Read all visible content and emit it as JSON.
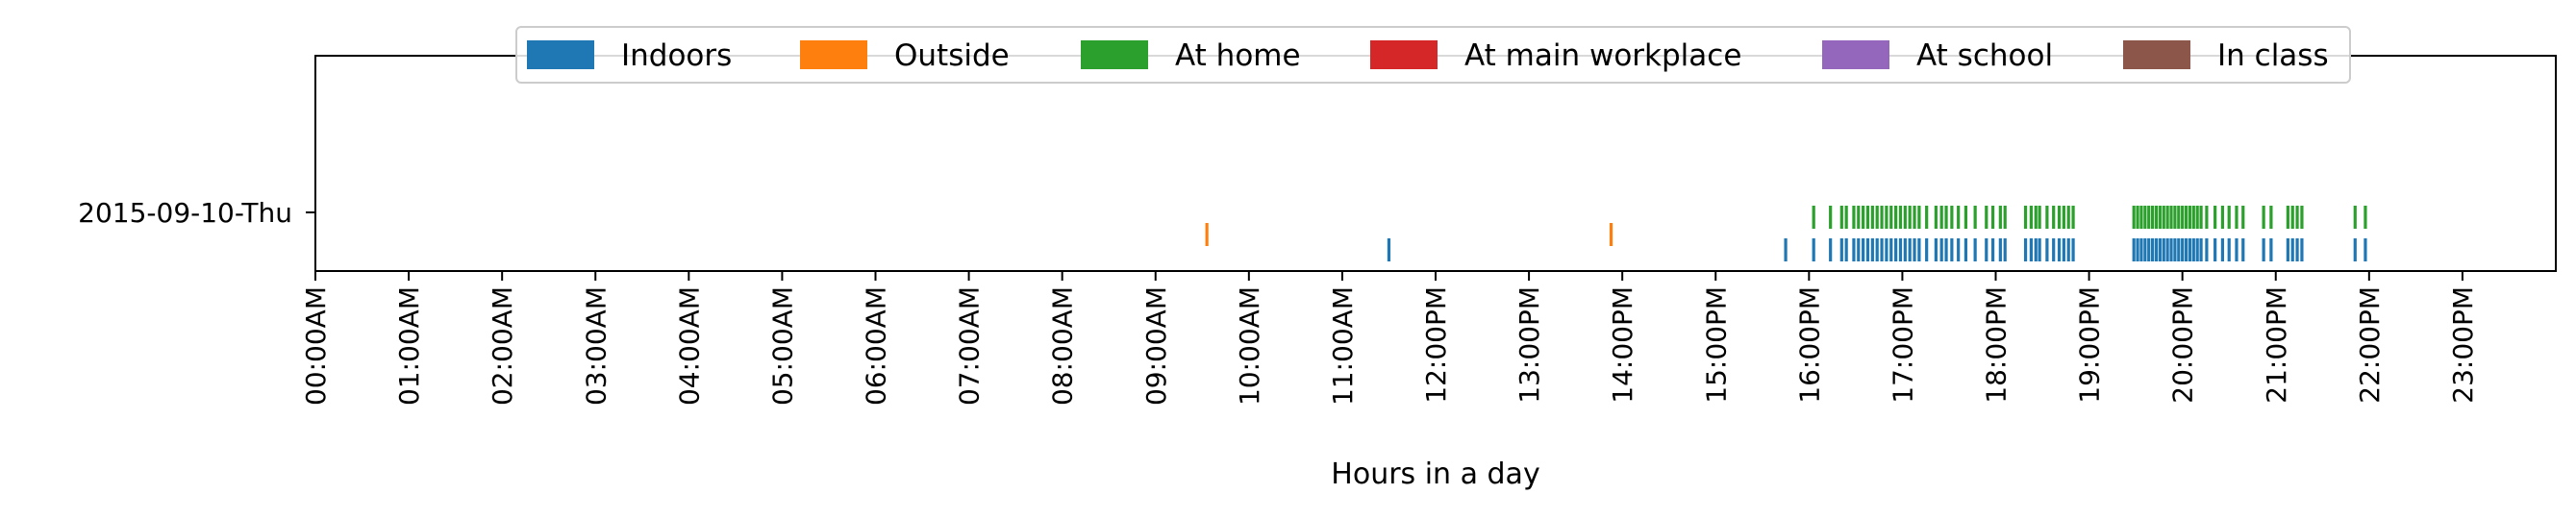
{
  "chart_data": {
    "type": "event-timeline",
    "xlabel": "Hours in a day",
    "ylabel": "",
    "xlim": [
      0,
      24
    ],
    "x_ticks": [
      0,
      1,
      2,
      3,
      4,
      5,
      6,
      7,
      8,
      9,
      10,
      11,
      12,
      13,
      14,
      15,
      16,
      17,
      18,
      19,
      20,
      21,
      22,
      23
    ],
    "x_tick_labels": [
      "00:00AM",
      "01:00AM",
      "02:00AM",
      "03:00AM",
      "04:00AM",
      "05:00AM",
      "06:00AM",
      "07:00AM",
      "08:00AM",
      "09:00AM",
      "10:00AM",
      "11:00AM",
      "12:00PM",
      "13:00PM",
      "14:00PM",
      "15:00PM",
      "16:00PM",
      "17:00PM",
      "18:00PM",
      "19:00PM",
      "20:00PM",
      "21:00PM",
      "22:00PM",
      "23:00PM"
    ],
    "y_categories": [
      "2015-09-10-Thu"
    ],
    "legend_position": "top-center",
    "grid": false,
    "series": [
      {
        "name": "Indoors",
        "color": "#1f77b4",
        "row": "2015-09-10-Thu",
        "events": [
          11.5,
          15.75,
          16.05,
          16.23,
          16.35,
          16.4,
          16.48,
          16.53,
          16.58,
          16.63,
          16.68,
          16.73,
          16.78,
          16.83,
          16.88,
          16.93,
          16.98,
          17.03,
          17.08,
          17.13,
          17.18,
          17.26,
          17.36,
          17.42,
          17.47,
          17.53,
          17.6,
          17.68,
          17.78,
          17.9,
          17.97,
          18.05,
          18.1,
          18.32,
          18.38,
          18.43,
          18.47,
          18.55,
          18.62,
          18.68,
          18.73,
          18.78,
          18.83,
          19.48,
          19.52,
          19.56,
          19.6,
          19.64,
          19.68,
          19.72,
          19.76,
          19.8,
          19.84,
          19.88,
          19.92,
          19.96,
          20.0,
          20.04,
          20.08,
          20.12,
          20.16,
          20.2,
          20.26,
          20.35,
          20.43,
          20.5,
          20.58,
          20.65,
          20.87,
          20.95,
          21.13,
          21.18,
          21.23,
          21.28,
          21.85,
          21.96
        ]
      },
      {
        "name": "Outside",
        "color": "#ff7f0e",
        "row": "2015-09-10-Thu",
        "events": [
          9.55,
          13.88
        ]
      },
      {
        "name": "At home",
        "color": "#2ca02c",
        "row": "2015-09-10-Thu",
        "events": [
          16.05,
          16.23,
          16.35,
          16.4,
          16.48,
          16.53,
          16.58,
          16.63,
          16.68,
          16.73,
          16.78,
          16.83,
          16.88,
          16.93,
          16.98,
          17.03,
          17.08,
          17.13,
          17.18,
          17.26,
          17.36,
          17.42,
          17.47,
          17.53,
          17.6,
          17.68,
          17.78,
          17.9,
          17.97,
          18.05,
          18.1,
          18.32,
          18.38,
          18.43,
          18.47,
          18.55,
          18.62,
          18.68,
          18.73,
          18.78,
          18.83,
          19.48,
          19.52,
          19.56,
          19.6,
          19.64,
          19.68,
          19.72,
          19.76,
          19.8,
          19.84,
          19.88,
          19.92,
          19.96,
          20.0,
          20.04,
          20.08,
          20.12,
          20.16,
          20.2,
          20.26,
          20.35,
          20.43,
          20.5,
          20.58,
          20.65,
          20.87,
          20.95,
          21.13,
          21.18,
          21.23,
          21.28,
          21.85,
          21.96
        ]
      },
      {
        "name": "At main workplace",
        "color": "#d62728",
        "row": "2015-09-10-Thu",
        "events": []
      },
      {
        "name": "At school",
        "color": "#9467bd",
        "row": "2015-09-10-Thu",
        "events": []
      },
      {
        "name": "In class",
        "color": "#8c564b",
        "row": "2015-09-10-Thu",
        "events": []
      }
    ]
  }
}
